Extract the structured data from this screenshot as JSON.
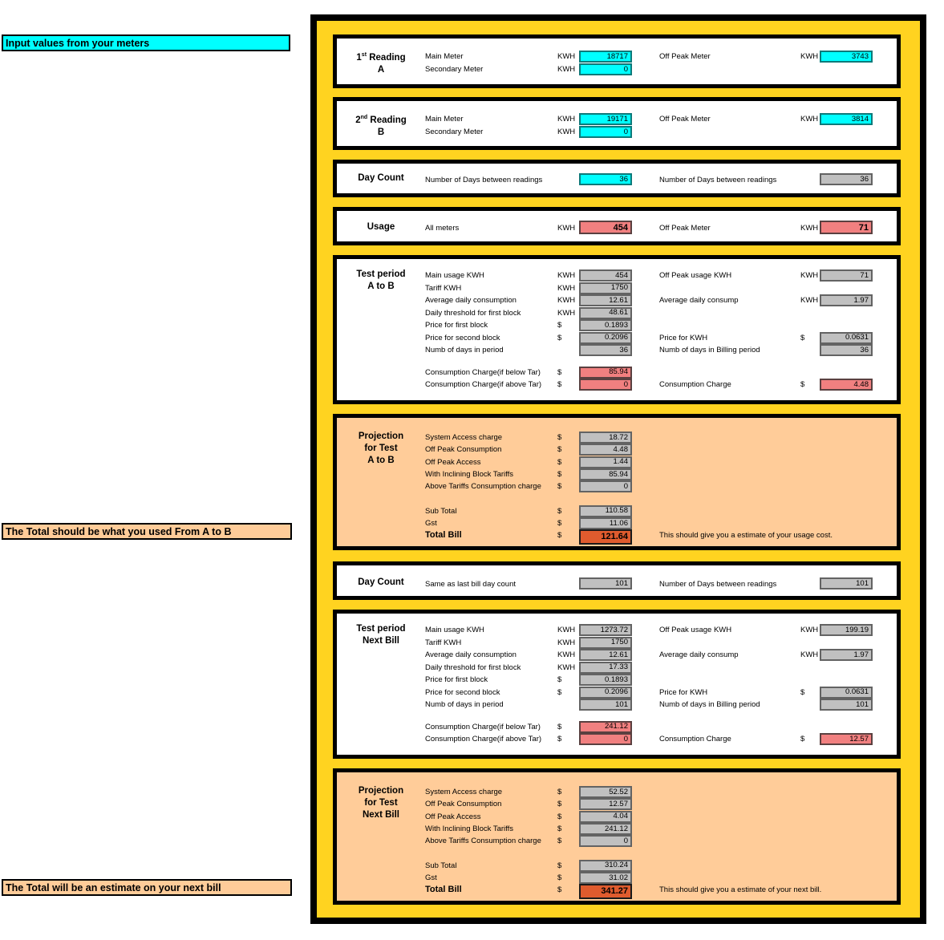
{
  "side_labels": {
    "input_hint": "Input values from your meters",
    "total_a_b_hint": "The Total should be what you used From A to B",
    "next_bill_hint": "The Total will be an estimate on your next bill"
  },
  "colors": {
    "panel_yellow": "#FFD320",
    "input_cyan": "#00FFFF",
    "output_gray": "#C0C0C0",
    "charge_salmon": "#F18080",
    "total_red": "#DF5B2E",
    "projection_orange": "#FFCC99"
  },
  "sections": [
    {
      "id": "reading-a",
      "header_lines": [
        {
          "pre": "1",
          "sup": "st",
          "post": " Reading"
        },
        {
          "pre": "A"
        }
      ],
      "rows": [
        {
          "name": "main-meter",
          "label": "Main Meter",
          "unit": "KWH",
          "value": "18717",
          "vstyle": "cyan",
          "label2": "Off Peak Meter",
          "unit2": "KWH",
          "value2": "3743",
          "v2style": "cyan"
        },
        {
          "name": "secondary-meter",
          "label": "Secondary Meter",
          "unit": "KWH",
          "value": "0",
          "vstyle": "cyan"
        }
      ]
    },
    {
      "id": "reading-b",
      "header_lines": [
        {
          "pre": "2",
          "sup": "nd",
          "post": " Reading"
        },
        {
          "pre": "B"
        }
      ],
      "rows": [
        {
          "name": "main-meter",
          "label": "Main Meter",
          "unit": "KWH",
          "value": "19171",
          "vstyle": "cyan",
          "label2": "Off Peak Meter",
          "unit2": "KWH",
          "value2": "3814",
          "v2style": "cyan"
        },
        {
          "name": "secondary-meter",
          "label": "Secondary Meter",
          "unit": "KWH",
          "value": "0",
          "vstyle": "cyan"
        }
      ]
    },
    {
      "id": "day-count-1",
      "header_lines": [
        {
          "pre": "Day Count"
        }
      ],
      "rows": [
        {
          "name": "days-between-readings",
          "label": "Number of Days between readings",
          "value": "36",
          "vstyle": "cyan",
          "label2": "Number of Days between readings",
          "value2": "36",
          "v2style": "gray"
        }
      ]
    },
    {
      "id": "usage",
      "header_lines": [
        {
          "pre": "Usage"
        }
      ],
      "rows": [
        {
          "name": "all-meters-usage",
          "label": "All meters",
          "unit": "KWH",
          "value": "454",
          "vstyle": "salmon",
          "vbold": true,
          "label2": "Off Peak Meter",
          "unit2": "KWH",
          "value2": "71",
          "v2style": "salmon",
          "v2bold": true
        }
      ]
    },
    {
      "id": "test-period-a-to-b",
      "header_lines": [
        {
          "pre": "Test period"
        },
        {
          "pre": "A to B"
        }
      ],
      "rows": [
        {
          "name": "main-usage",
          "label": "Main usage KWH",
          "unit": "KWH",
          "value": "454",
          "vstyle": "gray",
          "label2": "Off Peak usage KWH",
          "unit2": "KWH",
          "value2": "71",
          "v2style": "gray"
        },
        {
          "name": "tariff",
          "label": "Tariff KWH",
          "unit": "KWH",
          "value": "1750",
          "vstyle": "gray"
        },
        {
          "name": "avg-daily",
          "label": "Average daily consumption",
          "unit": "KWH",
          "value": "12.61",
          "vstyle": "gray",
          "label2": "Average daily consump",
          "unit2": "KWH",
          "value2": "1.97",
          "v2style": "gray"
        },
        {
          "name": "daily-threshold",
          "label": "Daily threshold for first block",
          "unit": "KWH",
          "value": "48.61",
          "vstyle": "gray"
        },
        {
          "name": "price-first-block",
          "label": "Price for first block",
          "unit": "$",
          "value": "0.1893",
          "vstyle": "gray"
        },
        {
          "name": "price-second-block",
          "label": "Price for second block",
          "unit": "$",
          "value": "0.2096",
          "vstyle": "gray",
          "label2": "Price for KWH",
          "unit2": "$",
          "value2": "0.0631",
          "v2style": "gray"
        },
        {
          "name": "days-in-period",
          "label": "Numb of days in period",
          "value": "36",
          "vstyle": "gray",
          "label2": "Numb of days in Billing period",
          "value2": "36",
          "v2style": "gray"
        },
        {
          "blank": true,
          "h": 12
        },
        {
          "name": "consumption-below-tar",
          "label": "Consumption Charge(if below Tar)",
          "unit": "$",
          "value": "85.94",
          "vstyle": "salmon"
        },
        {
          "name": "consumption-above-tar",
          "label": "Consumption Charge(if above Tar)",
          "unit": "$",
          "value": "0",
          "vstyle": "salmon",
          "label2": "Consumption Charge",
          "unit2": "$",
          "value2": "4.48",
          "v2style": "salmon"
        }
      ]
    },
    {
      "id": "projection-a-to-b",
      "header_lines": [
        {
          "pre": "Projection"
        },
        {
          "pre": "for Test"
        },
        {
          "pre": "A to B"
        }
      ],
      "rows": [
        {
          "name": "system-access-charge",
          "label": "System Access charge",
          "unit": "$",
          "value": "18.72",
          "vstyle": "gray"
        },
        {
          "name": "off-peak-consumption",
          "label": "Off Peak Consumption",
          "unit": "$",
          "value": "4.48",
          "vstyle": "gray"
        },
        {
          "name": "off-peak-access",
          "label": "Off Peak Access",
          "unit": "$",
          "value": "1.44",
          "vstyle": "gray"
        },
        {
          "name": "inclining-block-tariffs",
          "label": "With Inclining Block Tariffs",
          "unit": "$",
          "value": "85.94",
          "vstyle": "gray"
        },
        {
          "name": "above-tariffs-charge",
          "label": "Above Tariffs Consumption charge",
          "unit": "$",
          "value": "0",
          "vstyle": "gray"
        },
        {
          "blank": true,
          "h": 15
        },
        {
          "name": "sub-total",
          "label": "Sub Total",
          "unit": "$",
          "value": "110.58",
          "vstyle": "gray"
        },
        {
          "name": "gst",
          "label": "Gst",
          "unit": "$",
          "value": "11.06",
          "vstyle": "gray"
        },
        {
          "name": "total-bill",
          "label": "Total Bill",
          "unit": "$",
          "value": "121.64",
          "vstyle": "total",
          "total": true,
          "note2": "This should give you a estimate of your usage cost."
        }
      ]
    },
    {
      "id": "day-count-2",
      "header_lines": [
        {
          "pre": "Day Count"
        }
      ],
      "rows": [
        {
          "name": "same-as-last-bill",
          "label": "Same as last bill day count",
          "value": "101",
          "vstyle": "gray",
          "label2": "Number of Days between readings",
          "value2": "101",
          "v2style": "gray"
        }
      ]
    },
    {
      "id": "test-period-next-bill",
      "header_lines": [
        {
          "pre": "Test period"
        },
        {
          "pre": "Next Bill"
        }
      ],
      "rows": [
        {
          "name": "main-usage",
          "label": "Main usage KWH",
          "unit": "KWH",
          "value": "1273.72",
          "vstyle": "gray",
          "label2": "Off Peak usage KWH",
          "unit2": "KWH",
          "value2": "199.19",
          "v2style": "gray"
        },
        {
          "name": "tariff",
          "label": "Tariff KWH",
          "unit": "KWH",
          "value": "1750",
          "vstyle": "gray"
        },
        {
          "name": "avg-daily",
          "label": "Average daily consumption",
          "unit": "KWH",
          "value": "12.61",
          "vstyle": "gray",
          "label2": "Average daily consump",
          "unit2": "KWH",
          "value2": "1.97",
          "v2style": "gray"
        },
        {
          "name": "daily-threshold",
          "label": "Daily threshold for first block",
          "unit": "KWH",
          "value": "17.33",
          "vstyle": "gray"
        },
        {
          "name": "price-first-block",
          "label": "Price for first block",
          "unit": "$",
          "value": "0.1893",
          "vstyle": "gray"
        },
        {
          "name": "price-second-block",
          "label": "Price for second block",
          "unit": "$",
          "value": "0.2096",
          "vstyle": "gray",
          "label2": "Price for KWH",
          "unit2": "$",
          "value2": "0.0631",
          "v2style": "gray"
        },
        {
          "name": "days-in-period",
          "label": "Numb of days in period",
          "value": "101",
          "vstyle": "gray",
          "label2": "Numb of days in Billing period",
          "value2": "101",
          "v2style": "gray"
        },
        {
          "blank": true,
          "h": 12
        },
        {
          "name": "consumption-below-tar",
          "label": "Consumption Charge(if below Tar)",
          "unit": "$",
          "value": "241.12",
          "vstyle": "salmon"
        },
        {
          "name": "consumption-above-tar",
          "label": "Consumption Charge(if above Tar)",
          "unit": "$",
          "value": "0",
          "vstyle": "salmon",
          "label2": "Consumption Charge",
          "unit2": "$",
          "value2": "12.57",
          "v2style": "salmon"
        }
      ]
    },
    {
      "id": "projection-next-bill",
      "header_lines": [
        {
          "pre": "Projection"
        },
        {
          "pre": "for Test"
        },
        {
          "pre": "Next Bill"
        }
      ],
      "rows": [
        {
          "name": "system-access-charge",
          "label": "System Access charge",
          "unit": "$",
          "value": "52.52",
          "vstyle": "gray"
        },
        {
          "name": "off-peak-consumption",
          "label": "Off Peak Consumption",
          "unit": "$",
          "value": "12.57",
          "vstyle": "gray"
        },
        {
          "name": "off-peak-access",
          "label": "Off Peak Access",
          "unit": "$",
          "value": "4.04",
          "vstyle": "gray"
        },
        {
          "name": "inclining-block-tariffs",
          "label": "With Inclining Block Tariffs",
          "unit": "$",
          "value": "241.12",
          "vstyle": "gray"
        },
        {
          "name": "above-tariffs-charge",
          "label": "Above Tariffs Consumption charge",
          "unit": "$",
          "value": "0",
          "vstyle": "gray"
        },
        {
          "blank": true,
          "h": 15
        },
        {
          "name": "sub-total",
          "label": "Sub Total",
          "unit": "$",
          "value": "310.24",
          "vstyle": "gray"
        },
        {
          "name": "gst",
          "label": "Gst",
          "unit": "$",
          "value": "31.02",
          "vstyle": "gray"
        },
        {
          "name": "total-bill",
          "label": "Total Bill",
          "unit": "$",
          "value": "341.27",
          "vstyle": "total",
          "total": true,
          "note2": "This should give you a estimate of your next bill."
        }
      ]
    }
  ]
}
